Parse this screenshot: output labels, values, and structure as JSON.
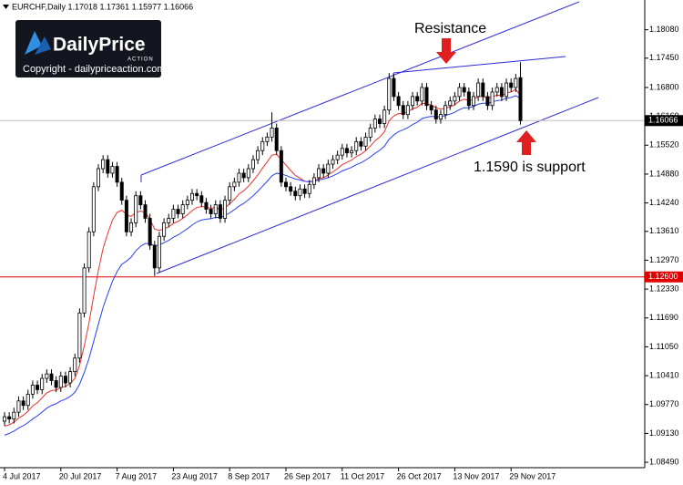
{
  "chart_data": {
    "type": "candlestick",
    "title": "EURCHF,Daily  1.17018 1.17361 1.15977 1.16066",
    "categories": [
      "4 Jul 2017",
      null,
      null,
      null,
      null,
      null,
      null,
      null,
      null,
      null,
      null,
      null,
      "20 Jul 2017",
      null,
      null,
      null,
      null,
      null,
      null,
      null,
      null,
      null,
      null,
      null,
      "7 Aug 2017",
      null,
      null,
      null,
      null,
      null,
      null,
      null,
      null,
      null,
      null,
      null,
      "23 Aug 2017",
      null,
      null,
      null,
      null,
      null,
      null,
      null,
      null,
      null,
      null,
      null,
      "8 Sep 2017",
      null,
      null,
      null,
      null,
      null,
      null,
      null,
      null,
      null,
      null,
      null,
      "26 Sep 2017",
      null,
      null,
      null,
      null,
      null,
      null,
      null,
      null,
      null,
      null,
      null,
      "11 Oct 2017",
      null,
      null,
      null,
      null,
      null,
      null,
      null,
      null,
      null,
      null,
      null,
      "26 Oct 2017",
      null,
      null,
      null,
      null,
      null,
      null,
      null,
      null,
      null,
      null,
      null,
      "13 Nov 2017",
      null,
      null,
      null,
      null,
      null,
      null,
      null,
      null,
      null,
      null,
      null,
      "29 Nov 2017",
      null,
      null
    ],
    "open": [
      1.094,
      1.095,
      1.0945,
      1.096,
      1.0985,
      1.0975,
      1.1,
      1.102,
      1.101,
      1.1035,
      1.1045,
      1.103,
      1.1015,
      1.104,
      1.1025,
      1.105,
      1.108,
      1.118,
      1.128,
      1.136,
      1.146,
      1.15,
      1.152,
      1.149,
      1.1505,
      1.147,
      1.143,
      1.136,
      1.138,
      1.144,
      1.142,
      1.139,
      1.133,
      1.128,
      1.135,
      1.138,
      1.139,
      1.141,
      1.14,
      1.142,
      1.143,
      1.1445,
      1.144,
      1.1425,
      1.141,
      1.14,
      1.142,
      1.139,
      1.143,
      1.146,
      1.147,
      1.149,
      1.148,
      1.15,
      1.152,
      1.154,
      1.156,
      1.157,
      1.159,
      1.154,
      1.147,
      1.146,
      1.145,
      1.144,
      1.1455,
      1.1445,
      1.1465,
      1.148,
      1.15,
      1.149,
      1.151,
      1.152,
      1.153,
      1.1545,
      1.1535,
      1.154,
      1.156,
      1.155,
      1.157,
      1.159,
      1.161,
      1.16,
      1.163,
      1.17,
      1.166,
      1.164,
      1.162,
      1.164,
      1.166,
      1.165,
      1.168,
      1.164,
      1.163,
      1.161,
      1.162,
      1.164,
      1.165,
      1.166,
      1.168,
      1.167,
      1.164,
      1.166,
      1.169,
      1.166,
      1.164,
      1.167,
      1.168,
      1.166,
      1.169,
      1.168,
      1.17018
    ],
    "high": [
      1.096,
      1.096,
      1.097,
      1.0995,
      1.0995,
      1.101,
      1.103,
      1.103,
      1.1045,
      1.1055,
      1.1055,
      1.104,
      1.105,
      1.105,
      1.106,
      1.109,
      1.119,
      1.129,
      1.137,
      1.147,
      1.151,
      1.153,
      1.153,
      1.1515,
      1.1515,
      1.148,
      1.144,
      1.139,
      1.145,
      1.145,
      1.143,
      1.14,
      1.134,
      1.136,
      1.139,
      1.14,
      1.142,
      1.142,
      1.143,
      1.144,
      1.1455,
      1.1455,
      1.145,
      1.1435,
      1.142,
      1.143,
      1.143,
      1.144,
      1.147,
      1.148,
      1.15,
      1.15,
      1.151,
      1.153,
      1.155,
      1.157,
      1.158,
      1.1625,
      1.16,
      1.155,
      1.148,
      1.147,
      1.146,
      1.1465,
      1.1465,
      1.1475,
      1.149,
      1.151,
      1.151,
      1.152,
      1.153,
      1.154,
      1.1555,
      1.1555,
      1.155,
      1.157,
      1.157,
      1.158,
      1.16,
      1.162,
      1.162,
      1.164,
      1.1712,
      1.171,
      1.167,
      1.165,
      1.165,
      1.167,
      1.167,
      1.169,
      1.169,
      1.165,
      1.164,
      1.163,
      1.165,
      1.166,
      1.167,
      1.169,
      1.169,
      1.168,
      1.167,
      1.17,
      1.17,
      1.167,
      1.168,
      1.169,
      1.169,
      1.17,
      1.17,
      1.171,
      1.17361
    ],
    "low": [
      1.093,
      1.0935,
      1.0935,
      1.095,
      1.0965,
      1.0965,
      1.099,
      1.1,
      1.1,
      1.1025,
      1.102,
      1.1005,
      1.1005,
      1.1015,
      1.1015,
      1.104,
      1.107,
      1.117,
      1.127,
      1.135,
      1.145,
      1.149,
      1.148,
      1.148,
      1.146,
      1.142,
      1.135,
      1.135,
      1.137,
      1.141,
      1.138,
      1.132,
      1.1262,
      1.127,
      1.134,
      1.137,
      1.138,
      1.139,
      1.139,
      1.141,
      1.142,
      1.143,
      1.1415,
      1.14,
      1.139,
      1.139,
      1.138,
      1.138,
      1.142,
      1.145,
      1.146,
      1.147,
      1.147,
      1.149,
      1.151,
      1.153,
      1.155,
      1.156,
      1.153,
      1.146,
      1.145,
      1.144,
      1.143,
      1.143,
      1.1435,
      1.1435,
      1.1455,
      1.147,
      1.148,
      1.148,
      1.15,
      1.151,
      1.152,
      1.1525,
      1.1525,
      1.153,
      1.154,
      1.154,
      1.156,
      1.158,
      1.159,
      1.159,
      1.162,
      1.165,
      1.163,
      1.161,
      1.161,
      1.163,
      1.164,
      1.164,
      1.163,
      1.162,
      1.16,
      1.16,
      1.161,
      1.163,
      1.164,
      1.165,
      1.166,
      1.163,
      1.163,
      1.165,
      1.165,
      1.163,
      1.163,
      1.166,
      1.165,
      1.165,
      1.167,
      1.167,
      1.15977
    ],
    "close": [
      1.095,
      1.0945,
      1.096,
      1.0985,
      1.0975,
      1.1,
      1.102,
      1.101,
      1.1035,
      1.1045,
      1.103,
      1.1015,
      1.104,
      1.1025,
      1.105,
      1.108,
      1.118,
      1.128,
      1.136,
      1.146,
      1.15,
      1.152,
      1.149,
      1.1505,
      1.147,
      1.143,
      1.136,
      1.138,
      1.144,
      1.142,
      1.139,
      1.133,
      1.128,
      1.135,
      1.138,
      1.139,
      1.141,
      1.14,
      1.142,
      1.143,
      1.1445,
      1.144,
      1.1425,
      1.141,
      1.14,
      1.142,
      1.139,
      1.143,
      1.146,
      1.147,
      1.149,
      1.148,
      1.15,
      1.152,
      1.154,
      1.156,
      1.157,
      1.159,
      1.154,
      1.147,
      1.146,
      1.145,
      1.144,
      1.1455,
      1.1445,
      1.1465,
      1.148,
      1.15,
      1.149,
      1.151,
      1.152,
      1.153,
      1.1545,
      1.1535,
      1.154,
      1.156,
      1.155,
      1.157,
      1.159,
      1.161,
      1.16,
      1.163,
      1.17,
      1.166,
      1.164,
      1.162,
      1.164,
      1.166,
      1.165,
      1.168,
      1.164,
      1.163,
      1.161,
      1.162,
      1.164,
      1.165,
      1.166,
      1.168,
      1.167,
      1.164,
      1.166,
      1.169,
      1.166,
      1.164,
      1.167,
      1.168,
      1.166,
      1.169,
      1.168,
      1.17,
      1.16066
    ],
    "lines": [
      {
        "color": "#e8312a",
        "values": [
          1.0929,
          1.0932,
          1.0938,
          1.0947,
          1.0953,
          1.0962,
          1.0974,
          1.0981,
          1.0992,
          1.1003,
          1.1008,
          1.1009,
          1.1015,
          1.1017,
          1.1024,
          1.1035,
          1.1064,
          1.1107,
          1.1158,
          1.1218,
          1.1274,
          1.1323,
          1.1356,
          1.1386,
          1.1403,
          1.1408,
          1.1398,
          1.1394,
          1.1403,
          1.1406,
          1.1403,
          1.1388,
          1.1366,
          1.1363,
          1.1366,
          1.1371,
          1.1379,
          1.1383,
          1.139,
          1.1398,
          1.1407,
          1.1414,
          1.1416,
          1.1415,
          1.1412,
          1.1414,
          1.1409,
          1.1413,
          1.1422,
          1.1432,
          1.1444,
          1.1451,
          1.1461,
          1.1473,
          1.1486,
          1.1501,
          1.1515,
          1.153,
          1.1532,
          1.152,
          1.1508,
          1.1496,
          1.1485,
          1.1479,
          1.1472,
          1.1471,
          1.1473,
          1.1478,
          1.148,
          1.1486,
          1.1493,
          1.15,
          1.1509,
          1.1514,
          1.1519,
          1.1527,
          1.1532,
          1.154,
          1.155,
          1.1562,
          1.157,
          1.1582,
          1.1606,
          1.1617,
          1.1622,
          1.1622,
          1.1626,
          1.1633,
          1.1636,
          1.1645,
          1.1644,
          1.1641,
          1.1635,
          1.1632,
          1.1634,
          1.1637,
          1.1642,
          1.165,
          1.1654,
          1.1651,
          1.1653,
          1.166,
          1.166,
          1.1656,
          1.1659,
          1.1663,
          1.1662,
          1.1668,
          1.167,
          1.1676,
          1.1662
        ]
      },
      {
        "color": "#2b3ff0",
        "values": [
          1.0909,
          1.0913,
          1.0918,
          1.0925,
          1.093,
          1.0937,
          1.0945,
          1.0952,
          1.096,
          1.0969,
          1.0975,
          1.0979,
          1.0985,
          1.0989,
          1.0995,
          1.1004,
          1.1022,
          1.1048,
          1.1079,
          1.1117,
          1.1155,
          1.1192,
          1.1222,
          1.125,
          1.1272,
          1.1288,
          1.1295,
          1.1304,
          1.1318,
          1.1328,
          1.1334,
          1.1334,
          1.1329,
          1.1331,
          1.1336,
          1.1341,
          1.1348,
          1.1353,
          1.136,
          1.1367,
          1.1375,
          1.1382,
          1.1386,
          1.1388,
          1.1389,
          1.1392,
          1.1392,
          1.1396,
          1.1402,
          1.1409,
          1.1417,
          1.1423,
          1.1431,
          1.144,
          1.145,
          1.1461,
          1.1472,
          1.1484,
          1.149,
          1.1488,
          1.1485,
          1.1481,
          1.1477,
          1.1475,
          1.1472,
          1.1471,
          1.1472,
          1.1475,
          1.1477,
          1.148,
          1.1484,
          1.1489,
          1.1495,
          1.1499,
          1.1503,
          1.1509,
          1.1513,
          1.1519,
          1.1526,
          1.1534,
          1.1541,
          1.155,
          1.1565,
          1.1575,
          1.1582,
          1.1586,
          1.1591,
          1.1598,
          1.1603,
          1.1611,
          1.1614,
          1.1616,
          1.1615,
          1.1615,
          1.1618,
          1.1621,
          1.1625,
          1.1631,
          1.1635,
          1.1635,
          1.1638,
          1.1643,
          1.1645,
          1.1645,
          1.1648,
          1.1651,
          1.1652,
          1.1656,
          1.1658,
          1.1662,
          1.1656
        ]
      }
    ],
    "ylim": [
      1.0837,
      1.1874
    ],
    "yticks": [
      {
        "value": 1.1808,
        "label": "1.18080"
      },
      {
        "value": 1.1745,
        "label": "1.17450"
      },
      {
        "value": 1.168,
        "label": "1.16800"
      },
      {
        "value": 1.1616,
        "label": "1.16160"
      },
      {
        "value": 1.1552,
        "label": "1.15520"
      },
      {
        "value": 1.1488,
        "label": "1.14880"
      },
      {
        "value": 1.1424,
        "label": "1.14240"
      },
      {
        "value": 1.1361,
        "label": "1.13610"
      },
      {
        "value": 1.1297,
        "label": "1.12970"
      },
      {
        "value": 1.1233,
        "label": "1.12330"
      },
      {
        "value": 1.1169,
        "label": "1.11690"
      },
      {
        "value": 1.1105,
        "label": "1.11050"
      },
      {
        "value": 1.1041,
        "label": "1.10410"
      },
      {
        "value": 1.0977,
        "label": "1.09770"
      },
      {
        "value": 1.0913,
        "label": "1.09130"
      },
      {
        "value": 1.0849,
        "label": "1.08490"
      }
    ],
    "price_lines": [
      {
        "value": 1.16066,
        "label": "1.16066",
        "color": "#000000",
        "line_color": "#c0c0c0"
      },
      {
        "value": 1.126,
        "label": "1.12600",
        "color": "#e00000",
        "line_color": "#e00000"
      }
    ],
    "annotations": [
      "Resistance",
      "1.1590 is support"
    ],
    "watermark": {
      "brand": "DailyPrice",
      "tagline": "ACTION",
      "copyright": "Copyright - dailypriceaction.com"
    }
  }
}
